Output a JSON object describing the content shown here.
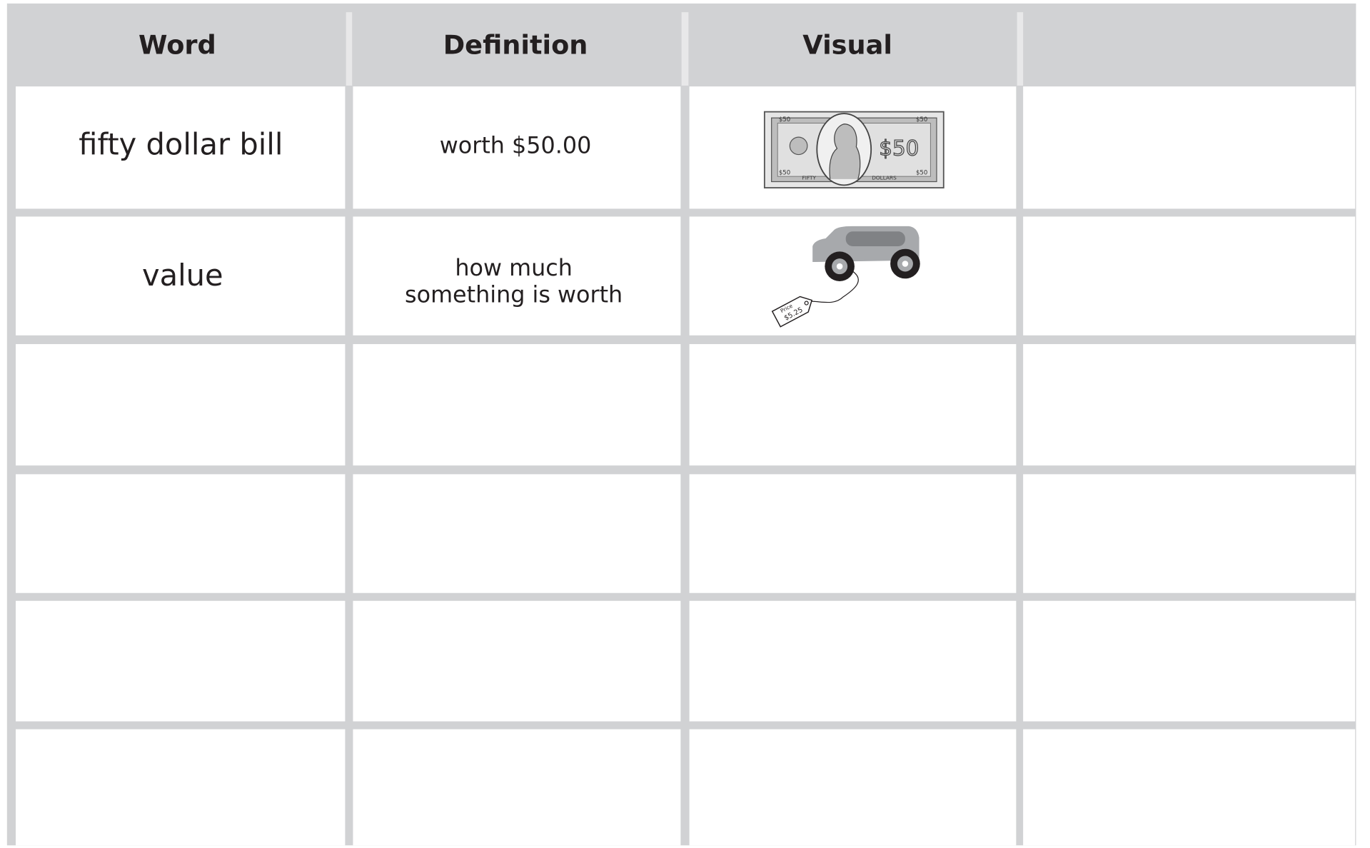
{
  "table": {
    "header": [
      "Word",
      "Definition",
      "Visual"
    ],
    "rows": [
      {
        "word": "fifty dollar bill",
        "definition": [
          "worth $50.00"
        ],
        "visual": {
          "amount": "$50",
          "corners": [
            "$50",
            "$50",
            "$50",
            "$50"
          ],
          "words": [
            "FIFTY",
            "DOLLARS"
          ]
        }
      },
      {
        "word": "value",
        "definition": [
          "how much",
          "something is worth"
        ],
        "visual": {
          "tag_title": "Price",
          "tag_amount": "$5.25"
        }
      }
    ]
  }
}
